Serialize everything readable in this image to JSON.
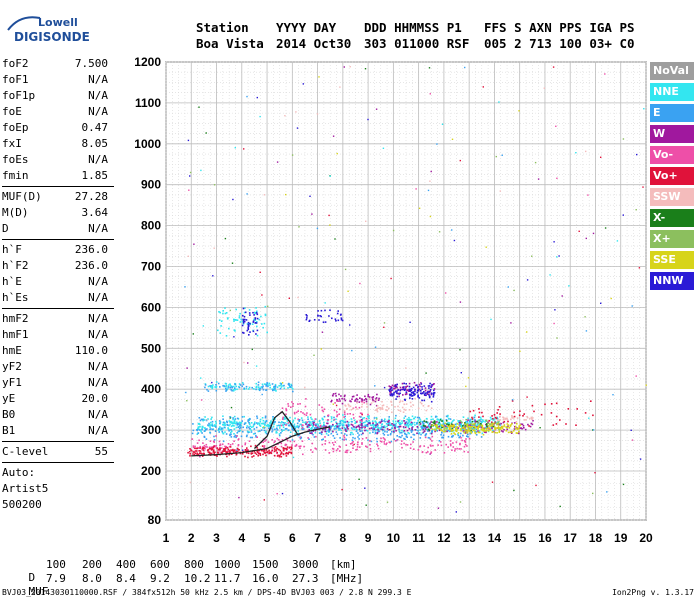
{
  "logo": {
    "line1": "Lowell",
    "line2": "DIGISONDE"
  },
  "header": {
    "row1": [
      "Station",
      "YYYY DAY",
      "DDD HHMMSS P1",
      "FFS S AXN PPS IGA PS"
    ],
    "row2": [
      "Boa Vista",
      "2014 Oct30",
      "303 011000 RSF",
      "005 2 713 100 03+ C0"
    ]
  },
  "params": {
    "group1": [
      {
        "name": "foF2",
        "value": "7.500"
      },
      {
        "name": "foF1",
        "value": "N/A"
      },
      {
        "name": "foF1p",
        "value": "N/A"
      },
      {
        "name": "foE",
        "value": "N/A"
      },
      {
        "name": "foEp",
        "value": "0.47"
      },
      {
        "name": "fxI",
        "value": "8.05"
      },
      {
        "name": "foEs",
        "value": "N/A"
      },
      {
        "name": "fmin",
        "value": "1.85"
      }
    ],
    "group2": [
      {
        "name": "MUF(D)",
        "value": "27.28"
      },
      {
        "name": "M(D)",
        "value": "3.64"
      },
      {
        "name": "D",
        "value": "N/A"
      }
    ],
    "group3": [
      {
        "name": "h`F",
        "value": "236.0"
      },
      {
        "name": "h`F2",
        "value": "236.0"
      },
      {
        "name": "h`E",
        "value": "N/A"
      },
      {
        "name": "h`Es",
        "value": "N/A"
      }
    ],
    "group4": [
      {
        "name": "hmF2",
        "value": "N/A"
      },
      {
        "name": "hmF1",
        "value": "N/A"
      },
      {
        "name": "hmE",
        "value": "110.0"
      },
      {
        "name": "yF2",
        "value": "N/A"
      },
      {
        "name": "yF1",
        "value": "N/A"
      },
      {
        "name": "yE",
        "value": "20.0"
      },
      {
        "name": "B0",
        "value": "N/A"
      },
      {
        "name": "B1",
        "value": "N/A"
      }
    ],
    "clevel": {
      "name": "C-level",
      "value": "55"
    },
    "auto": [
      "Auto:",
      "Artist5",
      "500200"
    ]
  },
  "legend": [
    {
      "label": "NoVal",
      "bg": "#9e9e9e",
      "fg": "#ffffff"
    },
    {
      "label": "NNE",
      "bg": "#33e6f0",
      "fg": "#ffffff"
    },
    {
      "label": "E",
      "bg": "#3aa2f2",
      "fg": "#ffffff"
    },
    {
      "label": "W",
      "bg": "#a0189e",
      "fg": "#ffffff"
    },
    {
      "label": "Vo-",
      "bg": "#ee4fa8",
      "fg": "#ffffff"
    },
    {
      "label": "Vo+",
      "bg": "#e0123a",
      "fg": "#ffffff"
    },
    {
      "label": "SSW",
      "bg": "#f4bcbc",
      "fg": "#ffffff"
    },
    {
      "label": "X-",
      "bg": "#1a7f1a",
      "fg": "#ffffff"
    },
    {
      "label": "X+",
      "bg": "#8cbf5e",
      "fg": "#ffffff"
    },
    {
      "label": "SSE",
      "bg": "#d7d41a",
      "fg": "#ffffff"
    },
    {
      "label": "NNW",
      "bg": "#2a1ad6",
      "fg": "#ffffff"
    }
  ],
  "bottom": {
    "d_label": "D",
    "d_values": [
      "100",
      "200",
      "400",
      "600",
      "800",
      "1000",
      "1500",
      "3000"
    ],
    "d_unit": "[km]",
    "muf_label": "MUF",
    "muf_values": [
      "7.9",
      "8.0",
      "8.4",
      "9.2",
      "10.2",
      "11.7",
      "16.0",
      "27.3"
    ],
    "muf_unit": "[MHz]",
    "footer_left": "BVJ03_20143030110000.RSF / 384fx512h 50 kHz 2.5 km / DPS-4D BVJ03 003 / 2.8 N 299.3 E",
    "footer_right": "Ion2Png v. 1.3.17"
  },
  "chart_data": {
    "type": "scatter",
    "xlim": [
      1,
      20
    ],
    "ylim": [
      80,
      1200
    ],
    "x_ticks": [
      1,
      2,
      3,
      4,
      5,
      6,
      7,
      8,
      9,
      10,
      11,
      12,
      13,
      14,
      15,
      16,
      17,
      18,
      19,
      20
    ],
    "y_ticks": [
      80,
      200,
      300,
      400,
      500,
      600,
      700,
      800,
      900,
      1000,
      1100,
      1200
    ],
    "grid": true,
    "legend_placement": "right",
    "series": [
      {
        "name": "NNE",
        "color": "#33e6f0",
        "clusters": [
          {
            "x": [
              2.2,
              14.2
            ],
            "y": [
              290,
              340
            ],
            "n": 700
          },
          {
            "x": [
              3.0,
              5.0
            ],
            "y": [
              530,
              610
            ],
            "n": 60
          },
          {
            "x": [
              2.5,
              6.0
            ],
            "y": [
              395,
              420
            ],
            "n": 80
          }
        ]
      },
      {
        "name": "E",
        "color": "#3aa2f2",
        "clusters": [
          {
            "x": [
              2.0,
              13.5
            ],
            "y": [
              270,
              340
            ],
            "n": 450
          },
          {
            "x": [
              2.5,
              6.0
            ],
            "y": [
              395,
              420
            ],
            "n": 60
          }
        ]
      },
      {
        "name": "W",
        "color": "#a0189e",
        "clusters": [
          {
            "x": [
              6.5,
              15.5
            ],
            "y": [
              290,
              330
            ],
            "n": 200
          },
          {
            "x": [
              9.8,
              11.6
            ],
            "y": [
              380,
              420
            ],
            "n": 70
          },
          {
            "x": [
              7.5,
              9.5
            ],
            "y": [
              360,
              395
            ],
            "n": 60
          }
        ]
      },
      {
        "name": "Vo-",
        "color": "#ee4fa8",
        "clusters": [
          {
            "x": [
              2.0,
              13.0
            ],
            "y": [
              240,
              290
            ],
            "n": 250
          },
          {
            "x": [
              5.5,
              9.0
            ],
            "y": [
              300,
              380
            ],
            "n": 80
          }
        ]
      },
      {
        "name": "Vo+",
        "color": "#e0123a",
        "clusters": [
          {
            "x": [
              1.8,
              6.0
            ],
            "y": [
              235,
              265
            ],
            "n": 220
          },
          {
            "x": [
              13.0,
              18.0
            ],
            "y": [
              300,
              380
            ],
            "n": 50
          }
        ]
      },
      {
        "name": "SSW",
        "color": "#f4bcbc",
        "clusters": [
          {
            "x": [
              8.0,
              11.5
            ],
            "y": [
              340,
              380
            ],
            "n": 70
          },
          {
            "x": [
              14.0,
              15.5
            ],
            "y": [
              320,
              340
            ],
            "n": 30
          }
        ]
      },
      {
        "name": "X-",
        "color": "#1a7f1a",
        "clusters": [
          {
            "x": [
              11.0,
              14.0
            ],
            "y": [
              300,
              330
            ],
            "n": 40
          }
        ]
      },
      {
        "name": "X+",
        "color": "#8cbf5e",
        "clusters": [
          {
            "x": [
              12.5,
              14.5
            ],
            "y": [
              300,
              330
            ],
            "n": 30
          }
        ]
      },
      {
        "name": "SSE",
        "color": "#d7d41a",
        "clusters": [
          {
            "x": [
              11.5,
              15.0
            ],
            "y": [
              290,
              320
            ],
            "n": 180
          }
        ]
      },
      {
        "name": "NNW",
        "color": "#2a1ad6",
        "clusters": [
          {
            "x": [
              9.8,
              11.6
            ],
            "y": [
              370,
              420
            ],
            "n": 110
          },
          {
            "x": [
              4.0,
              4.6
            ],
            "y": [
              530,
              600
            ],
            "n": 40
          },
          {
            "x": [
              6.5,
              8.0
            ],
            "y": [
              560,
              600
            ],
            "n": 30
          }
        ]
      }
    ],
    "trace": {
      "color": "#222222",
      "points": [
        [
          2.0,
          237
        ],
        [
          3.0,
          240
        ],
        [
          4.0,
          245
        ],
        [
          5.0,
          255
        ],
        [
          5.5,
          270
        ],
        [
          6.0,
          285
        ],
        [
          6.5,
          295
        ],
        [
          7.0,
          302
        ],
        [
          7.5,
          308
        ]
      ]
    },
    "trace_hump": {
      "color": "#222222",
      "points": [
        [
          4.5,
          255
        ],
        [
          5.0,
          285
        ],
        [
          5.3,
          330
        ],
        [
          5.6,
          345
        ],
        [
          5.9,
          320
        ],
        [
          6.2,
          290
        ]
      ]
    }
  }
}
